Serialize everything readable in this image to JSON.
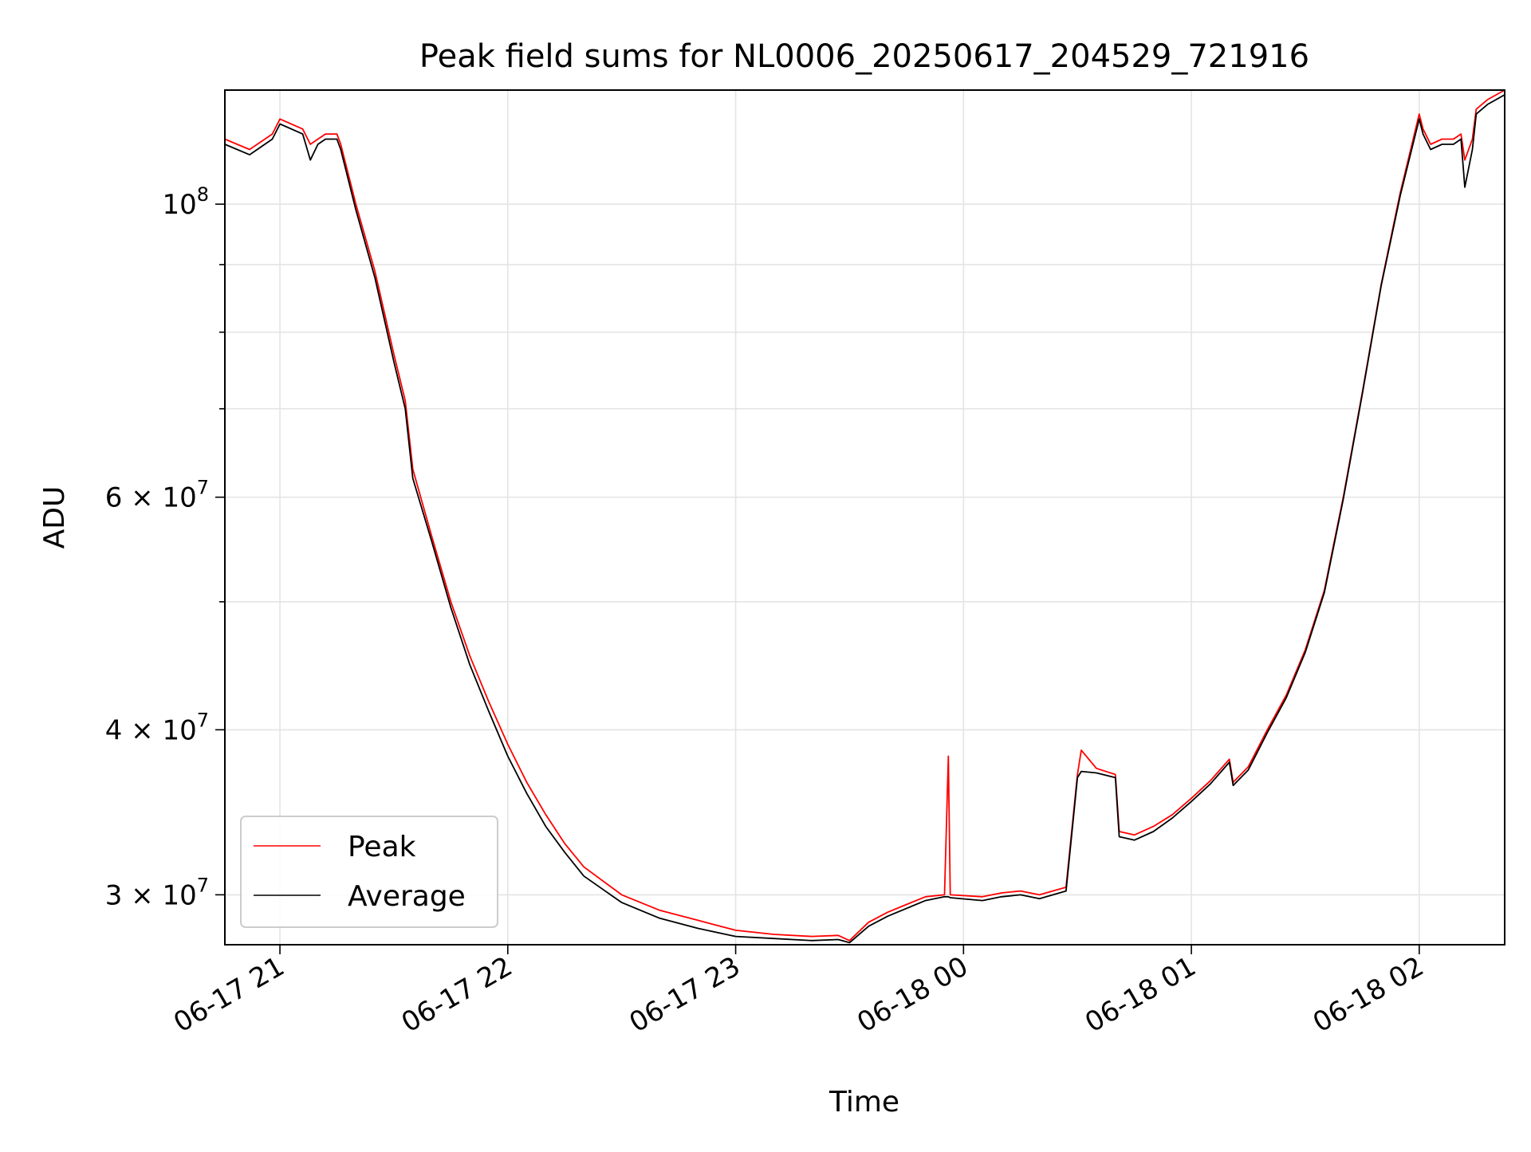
{
  "chart_data": {
    "type": "line",
    "title": "Peak field sums for NL0006_20250617_204529_721916",
    "xlabel": "Time",
    "ylabel": "ADU",
    "yscale": "log",
    "ylim": [
      27500000,
      122000000
    ],
    "xlim": [
      "2025-06-17 20:45:30",
      "2025-06-18 02:22:30"
    ],
    "grid": true,
    "legend_position": "lower-left",
    "x_ticks": [
      {
        "label": "06-17 21",
        "time": "2025-06-17 21:00"
      },
      {
        "label": "06-17 22",
        "time": "2025-06-17 22:00"
      },
      {
        "label": "06-17 23",
        "time": "2025-06-17 23:00"
      },
      {
        "label": "06-18 00",
        "time": "2025-06-18 00:00"
      },
      {
        "label": "06-18 01",
        "time": "2025-06-18 01:00"
      },
      {
        "label": "06-18 02",
        "time": "2025-06-18 02:00"
      }
    ],
    "y_ticks": [
      {
        "label_base": "10",
        "label_exp": "8",
        "value": 100000000
      },
      {
        "label_base": "6 × 10",
        "label_exp": "7",
        "value": 60000000
      },
      {
        "label_base": "4 × 10",
        "label_exp": "7",
        "value": 40000000
      },
      {
        "label_base": "3 × 10",
        "label_exp": "7",
        "value": 30000000
      }
    ],
    "y_minor_ticks": [
      50000000,
      70000000,
      80000000,
      90000000
    ],
    "series": [
      {
        "name": "Peak",
        "color": "#ff0000",
        "points": [
          [
            "2025-06-17 20:45:30",
            112000000
          ],
          [
            "2025-06-17 20:52",
            110000000
          ],
          [
            "2025-06-17 20:58",
            113000000
          ],
          [
            "2025-06-17 21:00",
            116000000
          ],
          [
            "2025-06-17 21:06",
            114000000
          ],
          [
            "2025-06-17 21:08",
            111000000
          ],
          [
            "2025-06-17 21:10",
            112000000
          ],
          [
            "2025-06-17 21:12",
            113000000
          ],
          [
            "2025-06-17 21:15",
            113000000
          ],
          [
            "2025-06-17 21:16",
            111000000
          ],
          [
            "2025-06-17 21:20",
            100000000
          ],
          [
            "2025-06-17 21:25",
            89000000
          ],
          [
            "2025-06-17 21:30",
            77000000
          ],
          [
            "2025-06-17 21:33",
            71000000
          ],
          [
            "2025-06-17 21:35",
            63000000
          ],
          [
            "2025-06-17 21:40",
            56000000
          ],
          [
            "2025-06-17 21:45",
            50000000
          ],
          [
            "2025-06-17 21:50",
            45500000
          ],
          [
            "2025-06-17 21:55",
            42000000
          ],
          [
            "2025-06-17 22:00",
            39000000
          ],
          [
            "2025-06-17 22:05",
            36500000
          ],
          [
            "2025-06-17 22:10",
            34500000
          ],
          [
            "2025-06-17 22:15",
            32800000
          ],
          [
            "2025-06-17 22:20",
            31500000
          ],
          [
            "2025-06-17 22:30",
            30000000
          ],
          [
            "2025-06-17 22:40",
            29200000
          ],
          [
            "2025-06-17 22:50",
            28700000
          ],
          [
            "2025-06-17 23:00",
            28200000
          ],
          [
            "2025-06-17 23:10",
            28000000
          ],
          [
            "2025-06-17 23:20",
            27900000
          ],
          [
            "2025-06-17 23:27",
            27950000
          ],
          [
            "2025-06-17 23:30",
            27700000
          ],
          [
            "2025-06-17 23:35",
            28600000
          ],
          [
            "2025-06-17 23:40",
            29100000
          ],
          [
            "2025-06-17 23:45",
            29500000
          ],
          [
            "2025-06-17 23:50",
            29900000
          ],
          [
            "2025-06-17 23:55",
            30000000
          ],
          [
            "2025-06-17 23:56",
            38200000
          ],
          [
            "2025-06-17 23:56:30",
            30000000
          ],
          [
            "2025-06-18 00:05",
            29900000
          ],
          [
            "2025-06-18 00:10",
            30100000
          ],
          [
            "2025-06-18 00:15",
            30200000
          ],
          [
            "2025-06-18 00:20",
            30000000
          ],
          [
            "2025-06-18 00:27",
            30400000
          ],
          [
            "2025-06-18 00:30",
            37000000
          ],
          [
            "2025-06-18 00:31",
            38600000
          ],
          [
            "2025-06-18 00:35",
            37400000
          ],
          [
            "2025-06-18 00:40",
            37000000
          ],
          [
            "2025-06-18 00:41",
            33500000
          ],
          [
            "2025-06-18 00:45",
            33300000
          ],
          [
            "2025-06-18 00:50",
            33800000
          ],
          [
            "2025-06-18 00:55",
            34500000
          ],
          [
            "2025-06-18 01:00",
            35500000
          ],
          [
            "2025-06-18 01:05",
            36600000
          ],
          [
            "2025-06-18 01:10",
            38000000
          ],
          [
            "2025-06-18 01:11",
            36500000
          ],
          [
            "2025-06-18 01:15",
            37500000
          ],
          [
            "2025-06-18 01:20",
            40000000
          ],
          [
            "2025-06-18 01:25",
            42500000
          ],
          [
            "2025-06-18 01:30",
            46000000
          ],
          [
            "2025-06-18 01:35",
            51000000
          ],
          [
            "2025-06-18 01:40",
            60000000
          ],
          [
            "2025-06-18 01:45",
            72000000
          ],
          [
            "2025-06-18 01:50",
            87000000
          ],
          [
            "2025-06-18 01:55",
            102000000
          ],
          [
            "2025-06-18 02:00",
            117000000
          ],
          [
            "2025-06-18 02:01",
            114000000
          ],
          [
            "2025-06-18 02:03",
            111000000
          ],
          [
            "2025-06-18 02:06",
            112000000
          ],
          [
            "2025-06-18 02:09",
            112000000
          ],
          [
            "2025-06-18 02:11",
            113000000
          ],
          [
            "2025-06-18 02:12",
            108000000
          ],
          [
            "2025-06-18 02:14",
            112000000
          ],
          [
            "2025-06-18 02:15",
            118000000
          ],
          [
            "2025-06-18 02:18",
            120000000
          ],
          [
            "2025-06-18 02:22:30",
            122000000
          ]
        ]
      },
      {
        "name": "Average",
        "color": "#000000",
        "points": [
          [
            "2025-06-17 20:45:30",
            111000000
          ],
          [
            "2025-06-17 20:52",
            109000000
          ],
          [
            "2025-06-17 20:58",
            112000000
          ],
          [
            "2025-06-17 21:00",
            115000000
          ],
          [
            "2025-06-17 21:06",
            113000000
          ],
          [
            "2025-06-17 21:08",
            108000000
          ],
          [
            "2025-06-17 21:10",
            111000000
          ],
          [
            "2025-06-17 21:12",
            112000000
          ],
          [
            "2025-06-17 21:15",
            112000000
          ],
          [
            "2025-06-17 21:16",
            110000000
          ],
          [
            "2025-06-17 21:20",
            99000000
          ],
          [
            "2025-06-17 21:25",
            88000000
          ],
          [
            "2025-06-17 21:30",
            76000000
          ],
          [
            "2025-06-17 21:33",
            70000000
          ],
          [
            "2025-06-17 21:35",
            62000000
          ],
          [
            "2025-06-17 21:40",
            55500000
          ],
          [
            "2025-06-17 21:45",
            49500000
          ],
          [
            "2025-06-17 21:50",
            44800000
          ],
          [
            "2025-06-17 21:55",
            41300000
          ],
          [
            "2025-06-17 22:00",
            38200000
          ],
          [
            "2025-06-17 22:05",
            35800000
          ],
          [
            "2025-06-17 22:10",
            33800000
          ],
          [
            "2025-06-17 22:15",
            32300000
          ],
          [
            "2025-06-17 22:20",
            31000000
          ],
          [
            "2025-06-17 22:30",
            29600000
          ],
          [
            "2025-06-17 22:40",
            28800000
          ],
          [
            "2025-06-17 22:50",
            28300000
          ],
          [
            "2025-06-17 23:00",
            27900000
          ],
          [
            "2025-06-17 23:10",
            27800000
          ],
          [
            "2025-06-17 23:20",
            27700000
          ],
          [
            "2025-06-17 23:27",
            27750000
          ],
          [
            "2025-06-17 23:30",
            27600000
          ],
          [
            "2025-06-17 23:35",
            28400000
          ],
          [
            "2025-06-17 23:40",
            28900000
          ],
          [
            "2025-06-17 23:45",
            29300000
          ],
          [
            "2025-06-17 23:50",
            29700000
          ],
          [
            "2025-06-17 23:55",
            29900000
          ],
          [
            "2025-06-17 23:56",
            29900000
          ],
          [
            "2025-06-17 23:56:30",
            29850000
          ],
          [
            "2025-06-18 00:05",
            29700000
          ],
          [
            "2025-06-18 00:10",
            29900000
          ],
          [
            "2025-06-18 00:15",
            30000000
          ],
          [
            "2025-06-18 00:20",
            29800000
          ],
          [
            "2025-06-18 00:27",
            30200000
          ],
          [
            "2025-06-18 00:30",
            36800000
          ],
          [
            "2025-06-18 00:31",
            37200000
          ],
          [
            "2025-06-18 00:35",
            37100000
          ],
          [
            "2025-06-18 00:40",
            36800000
          ],
          [
            "2025-06-18 00:41",
            33200000
          ],
          [
            "2025-06-18 00:45",
            33000000
          ],
          [
            "2025-06-18 00:50",
            33500000
          ],
          [
            "2025-06-18 00:55",
            34300000
          ],
          [
            "2025-06-18 01:00",
            35300000
          ],
          [
            "2025-06-18 01:05",
            36400000
          ],
          [
            "2025-06-18 01:10",
            37800000
          ],
          [
            "2025-06-18 01:11",
            36300000
          ],
          [
            "2025-06-18 01:15",
            37300000
          ],
          [
            "2025-06-18 01:20",
            39800000
          ],
          [
            "2025-06-18 01:25",
            42300000
          ],
          [
            "2025-06-18 01:30",
            45800000
          ],
          [
            "2025-06-18 01:35",
            50800000
          ],
          [
            "2025-06-18 01:40",
            59800000
          ],
          [
            "2025-06-18 01:45",
            71800000
          ],
          [
            "2025-06-18 01:50",
            86800000
          ],
          [
            "2025-06-18 01:55",
            101500000
          ],
          [
            "2025-06-18 02:00",
            116000000
          ],
          [
            "2025-06-18 02:01",
            113000000
          ],
          [
            "2025-06-18 02:03",
            110000000
          ],
          [
            "2025-06-18 02:06",
            111000000
          ],
          [
            "2025-06-18 02:09",
            111000000
          ],
          [
            "2025-06-18 02:11",
            112000000
          ],
          [
            "2025-06-18 02:12",
            103000000
          ],
          [
            "2025-06-18 02:14",
            110000000
          ],
          [
            "2025-06-18 02:15",
            117000000
          ],
          [
            "2025-06-18 02:18",
            119000000
          ],
          [
            "2025-06-18 02:22:30",
            121000000
          ]
        ]
      }
    ]
  }
}
